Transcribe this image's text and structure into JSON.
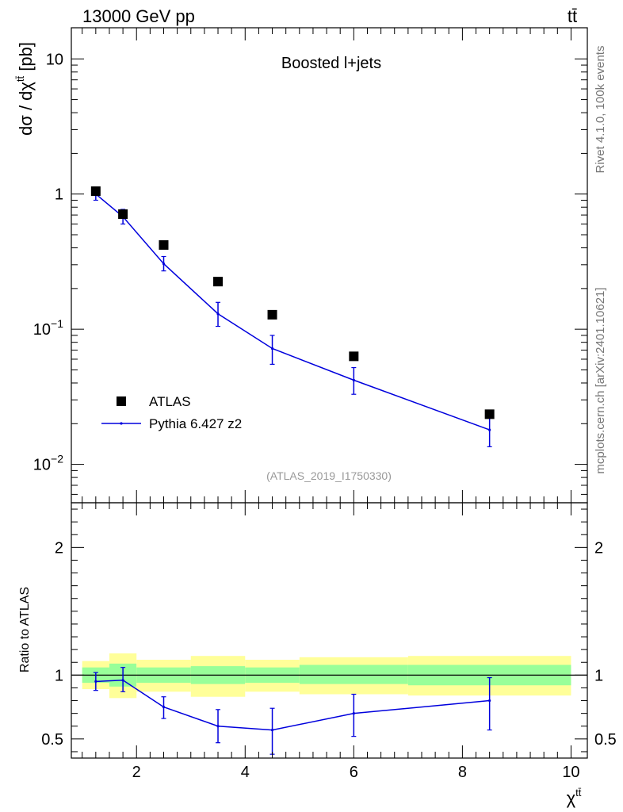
{
  "header": {
    "energy_label": "13000 GeV pp",
    "process_label": "tt̄"
  },
  "side_labels": {
    "rivet": "Rivet 4.1.0,  100k events",
    "mcplots": "mcplots.cern.ch [arXiv:2401.10621]"
  },
  "colors": {
    "data": "#000000",
    "mc": "#0000dd",
    "band_inner": "#99ff99",
    "band_outer": "#ffff99",
    "watermark": "#999999"
  },
  "chart_data": [
    {
      "type": "scatter",
      "panel": "main",
      "title": "Boosted l+jets",
      "analysis_id": "(ATLAS_2019_I1750330)",
      "ylabel": "dσ / dχ^tt̄ [pb]",
      "yscale": "log",
      "xlim": [
        0.8,
        10.3
      ],
      "ylim": [
        0.0052,
        17
      ],
      "y_tick_labels": [
        "10",
        "1",
        "10^-1",
        "10^-2"
      ],
      "legend_position": "bottom-left",
      "series": [
        {
          "name": "ATLAS",
          "style": "markers",
          "points": [
            {
              "x": 1.25,
              "xlow": 1.0,
              "xhigh": 1.5,
              "y": 1.05
            },
            {
              "x": 1.75,
              "xlow": 1.5,
              "xhigh": 2.0,
              "y": 0.71
            },
            {
              "x": 2.5,
              "xlow": 2.0,
              "xhigh": 3.0,
              "y": 0.42
            },
            {
              "x": 3.5,
              "xlow": 3.0,
              "xhigh": 4.0,
              "y": 0.225
            },
            {
              "x": 4.5,
              "xlow": 4.0,
              "xhigh": 5.0,
              "y": 0.128
            },
            {
              "x": 6.0,
              "xlow": 5.0,
              "xhigh": 7.0,
              "y": 0.063
            },
            {
              "x": 8.5,
              "xlow": 7.0,
              "xhigh": 10.0,
              "y": 0.0235
            }
          ]
        },
        {
          "name": "Pythia 6.427 z2",
          "style": "line",
          "points": [
            {
              "x": 1.25,
              "y": 1.0,
              "ylow": 0.9,
              "yhigh": 1.1
            },
            {
              "x": 1.75,
              "y": 0.68,
              "ylow": 0.6,
              "yhigh": 0.77
            },
            {
              "x": 2.5,
              "y": 0.305,
              "ylow": 0.27,
              "yhigh": 0.345
            },
            {
              "x": 3.5,
              "y": 0.13,
              "ylow": 0.105,
              "yhigh": 0.158
            },
            {
              "x": 4.5,
              "y": 0.072,
              "ylow": 0.055,
              "yhigh": 0.09
            },
            {
              "x": 6.0,
              "y": 0.042,
              "ylow": 0.033,
              "yhigh": 0.052
            },
            {
              "x": 8.5,
              "y": 0.018,
              "ylow": 0.0135,
              "yhigh": 0.023
            }
          ]
        }
      ]
    },
    {
      "type": "line",
      "panel": "ratio",
      "ylabel": "Ratio to ATLAS",
      "xlabel": "χ^tt̄",
      "xlim": [
        0.8,
        10.3
      ],
      "ylim": [
        0.35,
        2.35
      ],
      "x_ticks": [
        2,
        4,
        6,
        8,
        10
      ],
      "y_ticks": [
        0.5,
        1,
        2
      ],
      "reference_line": 1.0,
      "uncertainty_bands": [
        {
          "xlow": 1.0,
          "xhigh": 1.5,
          "inner": [
            0.94,
            1.06
          ],
          "outer": [
            0.89,
            1.11
          ]
        },
        {
          "xlow": 1.5,
          "xhigh": 2.0,
          "inner": [
            0.91,
            1.09
          ],
          "outer": [
            0.82,
            1.17
          ]
        },
        {
          "xlow": 2.0,
          "xhigh": 3.0,
          "inner": [
            0.94,
            1.06
          ],
          "outer": [
            0.87,
            1.12
          ]
        },
        {
          "xlow": 3.0,
          "xhigh": 4.0,
          "inner": [
            0.93,
            1.07
          ],
          "outer": [
            0.83,
            1.15
          ]
        },
        {
          "xlow": 4.0,
          "xhigh": 5.0,
          "inner": [
            0.94,
            1.06
          ],
          "outer": [
            0.87,
            1.12
          ]
        },
        {
          "xlow": 5.0,
          "xhigh": 7.0,
          "inner": [
            0.93,
            1.08
          ],
          "outer": [
            0.85,
            1.14
          ]
        },
        {
          "xlow": 7.0,
          "xhigh": 10.0,
          "inner": [
            0.92,
            1.08
          ],
          "outer": [
            0.84,
            1.15
          ]
        }
      ],
      "series": [
        {
          "name": "Pythia 6.427 z2",
          "points": [
            {
              "x": 1.25,
              "y": 0.95,
              "ylow": 0.88,
              "yhigh": 1.02
            },
            {
              "x": 1.75,
              "y": 0.96,
              "ylow": 0.87,
              "yhigh": 1.06
            },
            {
              "x": 2.5,
              "y": 0.75,
              "ylow": 0.66,
              "yhigh": 0.83
            },
            {
              "x": 3.5,
              "y": 0.6,
              "ylow": 0.47,
              "yhigh": 0.73
            },
            {
              "x": 4.5,
              "y": 0.57,
              "ylow": 0.38,
              "yhigh": 0.74
            },
            {
              "x": 6.0,
              "y": 0.7,
              "ylow": 0.52,
              "yhigh": 0.85
            },
            {
              "x": 8.5,
              "y": 0.8,
              "ylow": 0.57,
              "yhigh": 0.98
            }
          ]
        }
      ]
    }
  ]
}
